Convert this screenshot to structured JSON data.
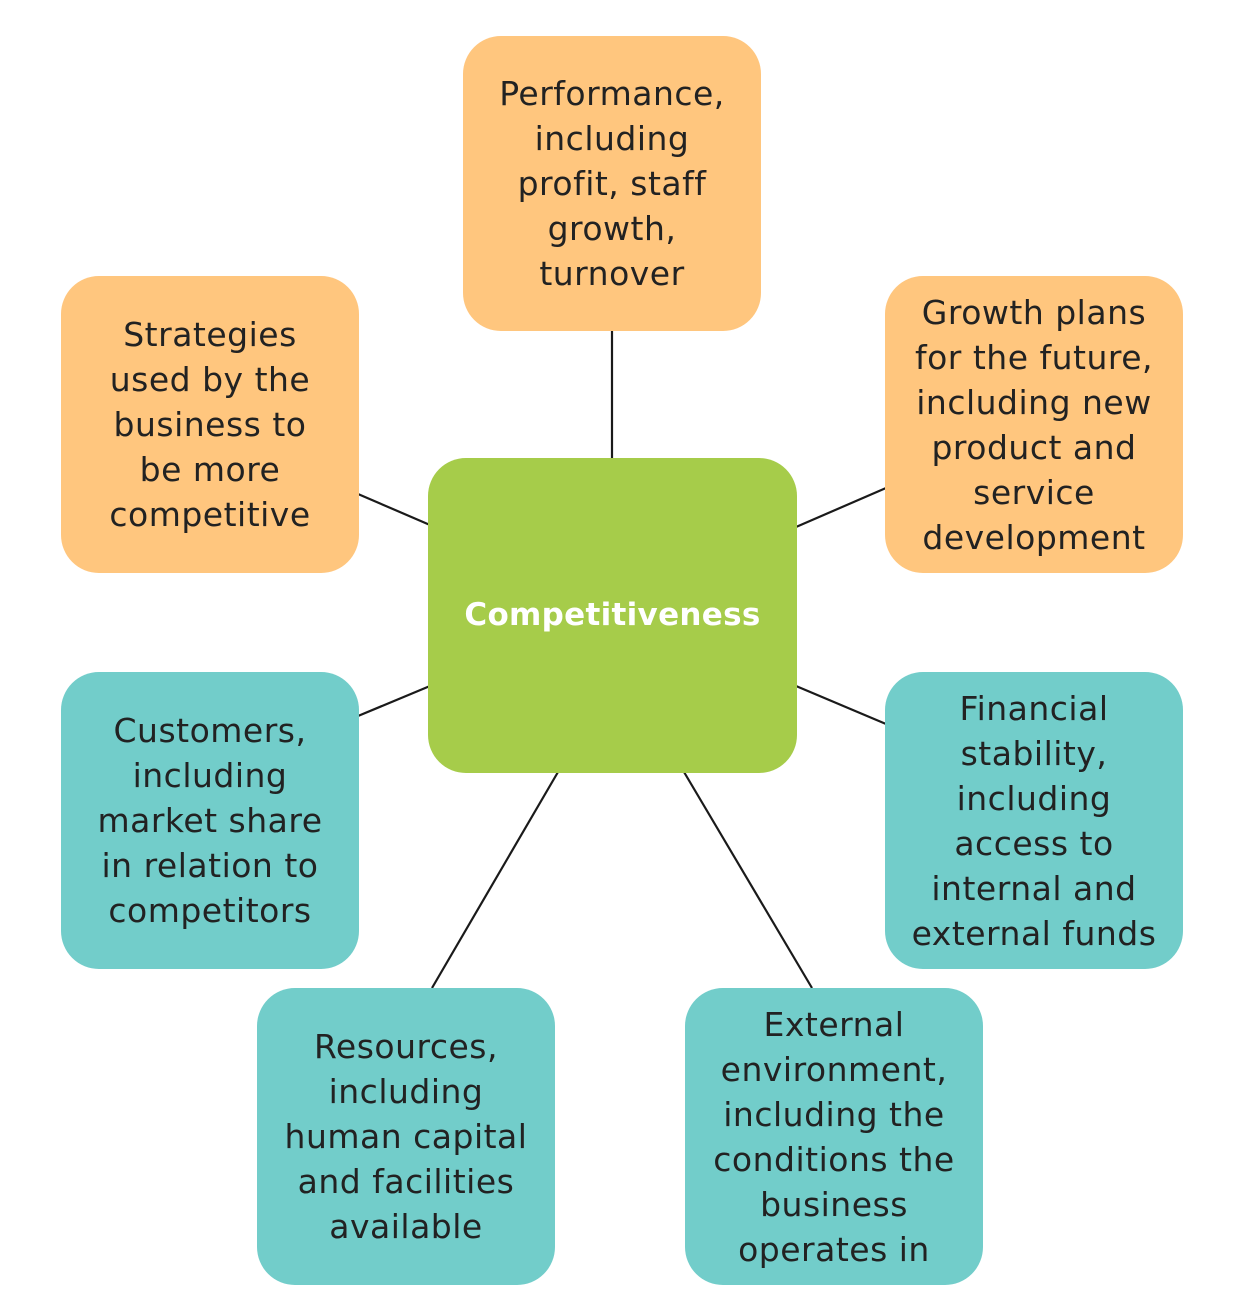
{
  "colors": {
    "center_fill": "#a6cc4a",
    "center_text": "#ffffff",
    "upper_fill": "#ffc67e",
    "lower_fill": "#72cdca",
    "node_text": "#222222",
    "connector": "#1a1a1a"
  },
  "center": {
    "label": "Competitiveness"
  },
  "nodes": {
    "performance": "Performance,\nincluding\nprofit, staff\ngrowth,\nturnover",
    "strategies": "Strategies\nused by the\nbusiness to\nbe more\ncompetitive",
    "growth_plans": "Growth plans\nfor the future,\nincluding new\nproduct and\nservice\ndevelopment",
    "customers": "Customers,\nincluding\nmarket share\nin relation to\ncompetitors",
    "financial_stability": "Financial\nstability,\nincluding\naccess to\ninternal and\nexternal funds",
    "resources": "Resources,\nincluding\nhuman capital\nand facilities\navailable",
    "external_environment": "External\nenvironment,\nincluding the\nconditions the\nbusiness\noperates in"
  }
}
